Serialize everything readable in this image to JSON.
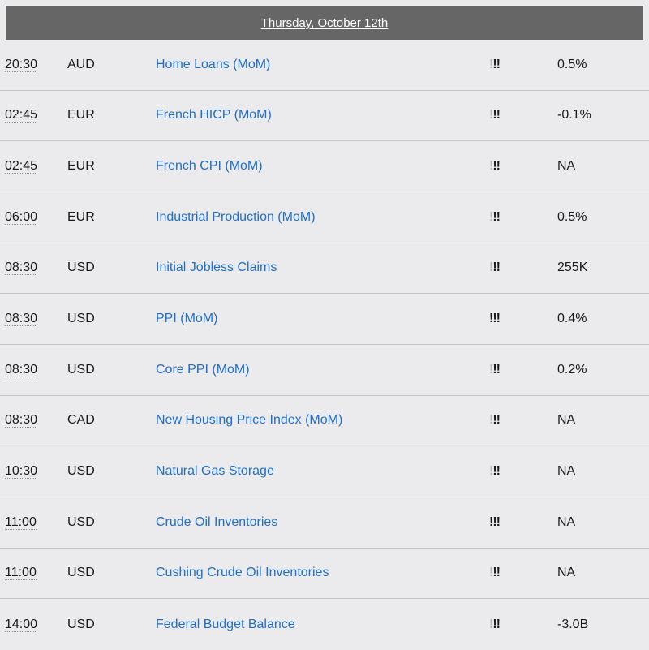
{
  "header": {
    "title": "Thursday, October 12th"
  },
  "colors": {
    "header_bg": "#666667",
    "page_bg": "#ebebed",
    "link": "#1f6fc8",
    "divider": "#c4c4c6"
  },
  "events": [
    {
      "time": "20:30",
      "currency": "AUD",
      "event": "Home Loans (MoM)",
      "importance": 2,
      "importance_label": "!!",
      "value": "0.5%"
    },
    {
      "time": "02:45",
      "currency": "EUR",
      "event": "French HICP (MoM)",
      "importance": 2,
      "importance_label": "!!",
      "value": "-0.1%"
    },
    {
      "time": "02:45",
      "currency": "EUR",
      "event": "French CPI (MoM)",
      "importance": 2,
      "importance_label": "!!",
      "value": "NA"
    },
    {
      "time": "06:00",
      "currency": "EUR",
      "event": "Industrial Production (MoM)",
      "importance": 2,
      "importance_label": "!!",
      "value": "0.5%"
    },
    {
      "time": "08:30",
      "currency": "USD",
      "event": "Initial Jobless Claims",
      "importance": 2,
      "importance_label": "!!",
      "value": "255K"
    },
    {
      "time": "08:30",
      "currency": "USD",
      "event": "PPI (MoM)",
      "importance": 3,
      "importance_label": "!!!",
      "value": "0.4%"
    },
    {
      "time": "08:30",
      "currency": "USD",
      "event": "Core PPI (MoM)",
      "importance": 2,
      "importance_label": "!!",
      "value": "0.2%"
    },
    {
      "time": "08:30",
      "currency": "CAD",
      "event": "New Housing Price Index (MoM)",
      "importance": 2,
      "importance_label": "!!",
      "value": "NA"
    },
    {
      "time": "10:30",
      "currency": "USD",
      "event": "Natural Gas Storage",
      "importance": 2,
      "importance_label": "!!",
      "value": "NA"
    },
    {
      "time": "11:00",
      "currency": "USD",
      "event": "Crude Oil Inventories",
      "importance": 3,
      "importance_label": "!!!",
      "value": "NA"
    },
    {
      "time": "11:00",
      "currency": "USD",
      "event": "Cushing Crude Oil Inventories",
      "importance": 2,
      "importance_label": "!!",
      "value": "NA"
    },
    {
      "time": "14:00",
      "currency": "USD",
      "event": "Federal Budget Balance",
      "importance": 2,
      "importance_label": "!!",
      "value": "-3.0B"
    }
  ]
}
